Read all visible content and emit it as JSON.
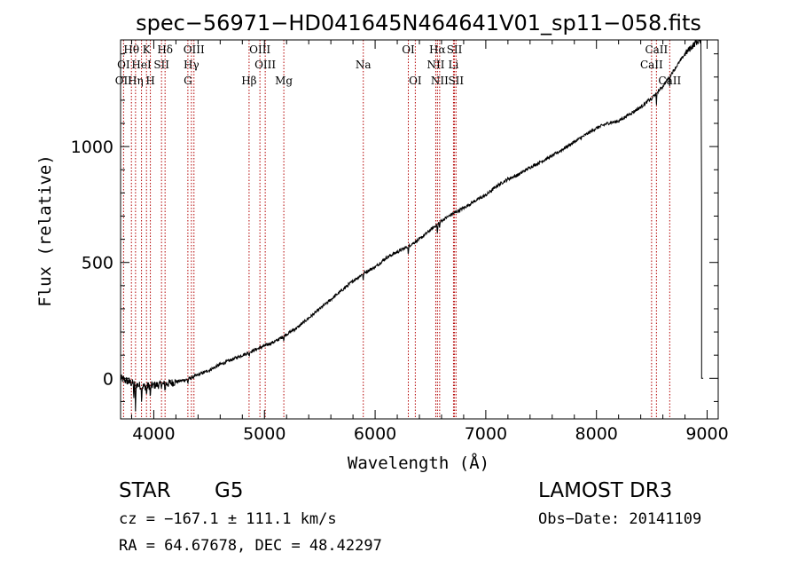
{
  "chart_data": {
    "type": "line",
    "title": "spec−56971−HD041645N464641V01_sp11−058.fits",
    "xlabel": "Wavelength (Å)",
    "ylabel": "Flux (relative)",
    "xlim": [
      3700,
      9100
    ],
    "ylim": [
      -175,
      1460
    ],
    "x_ticks": [
      4000,
      5000,
      6000,
      7000,
      8000,
      9000
    ],
    "y_ticks": [
      0,
      500,
      1000
    ],
    "x_tick_labels": [
      "4000",
      "5000",
      "6000",
      "7000",
      "8000",
      "9000"
    ],
    "y_tick_labels": [
      "0",
      "500",
      "1000"
    ],
    "grid": false,
    "spectrum_anchors": {
      "wavelength": [
        3700,
        3800,
        3900,
        4000,
        4100,
        4200,
        4300,
        4400,
        4500,
        4600,
        4700,
        4800,
        4900,
        5000,
        5100,
        5200,
        5300,
        5400,
        5500,
        5600,
        5700,
        5800,
        5900,
        6000,
        6100,
        6200,
        6300,
        6400,
        6500,
        6600,
        6700,
        6800,
        6900,
        7000,
        7100,
        7200,
        7300,
        7400,
        7500,
        7600,
        7700,
        7800,
        7900,
        8000,
        8100,
        8200,
        8300,
        8400,
        8500,
        8600,
        8700,
        8800,
        8900,
        8950
      ],
      "flux": [
        0,
        -20,
        -35,
        -30,
        -25,
        -15,
        -5,
        15,
        35,
        60,
        80,
        100,
        120,
        140,
        160,
        190,
        220,
        260,
        300,
        340,
        380,
        420,
        455,
        480,
        520,
        545,
        570,
        600,
        640,
        680,
        710,
        735,
        765,
        790,
        830,
        860,
        880,
        910,
        935,
        960,
        990,
        1020,
        1050,
        1080,
        1100,
        1110,
        1140,
        1170,
        1210,
        1260,
        1330,
        1400,
        1450,
        1460
      ]
    },
    "absorption_features": {
      "wavelength": [
        3820,
        3835,
        3890,
        3934,
        3969,
        4102,
        4308,
        4861,
        5175,
        5893,
        6300,
        6563,
        6583,
        8498,
        8542,
        8662,
        8950
      ],
      "depth": [
        60,
        130,
        60,
        40,
        60,
        25,
        20,
        15,
        20,
        30,
        40,
        45,
        25,
        15,
        55,
        40,
        700
      ]
    },
    "spectral_lines": [
      {
        "label": "Hθ",
        "wavelength": 3798,
        "row": 0
      },
      {
        "label": "K",
        "wavelength": 3934,
        "row": 0
      },
      {
        "label": "Hδ",
        "wavelength": 4102,
        "row": 0
      },
      {
        "label": "OIII",
        "wavelength": 4363,
        "row": 0
      },
      {
        "label": "OIII",
        "wavelength": 4959,
        "row": 0
      },
      {
        "label": "OI",
        "wavelength": 6300,
        "row": 0
      },
      {
        "label": "Hα",
        "wavelength": 6563,
        "row": 0
      },
      {
        "label": "SII",
        "wavelength": 6717,
        "row": 0
      },
      {
        "label": "CaII",
        "wavelength": 8542,
        "row": 0
      },
      {
        "label": "OI",
        "wavelength": 3727,
        "row": 1
      },
      {
        "label": "HeI",
        "wavelength": 3889,
        "row": 1
      },
      {
        "label": "SII",
        "wavelength": 4070,
        "row": 1
      },
      {
        "label": "Hγ",
        "wavelength": 4340,
        "row": 1
      },
      {
        "label": "OIII",
        "wavelength": 5007,
        "row": 1
      },
      {
        "label": "Na",
        "wavelength": 5893,
        "row": 1
      },
      {
        "label": "NII",
        "wavelength": 6548,
        "row": 1
      },
      {
        "label": "Li",
        "wavelength": 6708,
        "row": 1
      },
      {
        "label": "CaII",
        "wavelength": 8498,
        "row": 1
      },
      {
        "label": "OII",
        "wavelength": 3727,
        "row": 2
      },
      {
        "label": "Hη",
        "wavelength": 3835,
        "row": 2
      },
      {
        "label": "H",
        "wavelength": 3969,
        "row": 2
      },
      {
        "label": "G",
        "wavelength": 4308,
        "row": 2
      },
      {
        "label": "Hβ",
        "wavelength": 4861,
        "row": 2
      },
      {
        "label": "Mg",
        "wavelength": 5175,
        "row": 2
      },
      {
        "label": "OI",
        "wavelength": 6363,
        "row": 2
      },
      {
        "label": "NII",
        "wavelength": 6583,
        "row": 2
      },
      {
        "label": "SII",
        "wavelength": 6731,
        "row": 2
      },
      {
        "label": "CaII",
        "wavelength": 8662,
        "row": 2
      }
    ],
    "colors": {
      "line_marker": "#b30000",
      "spectrum": "#000000"
    }
  },
  "footer": {
    "object_class": "STAR",
    "subclass": "G5",
    "survey": "LAMOST DR3",
    "redshift": "cz = −167.1 ± 111.1 km/s",
    "obs_date": "Obs−Date: 20141109",
    "coordinates": "RA =  64.67678, DEC =  48.42297"
  }
}
